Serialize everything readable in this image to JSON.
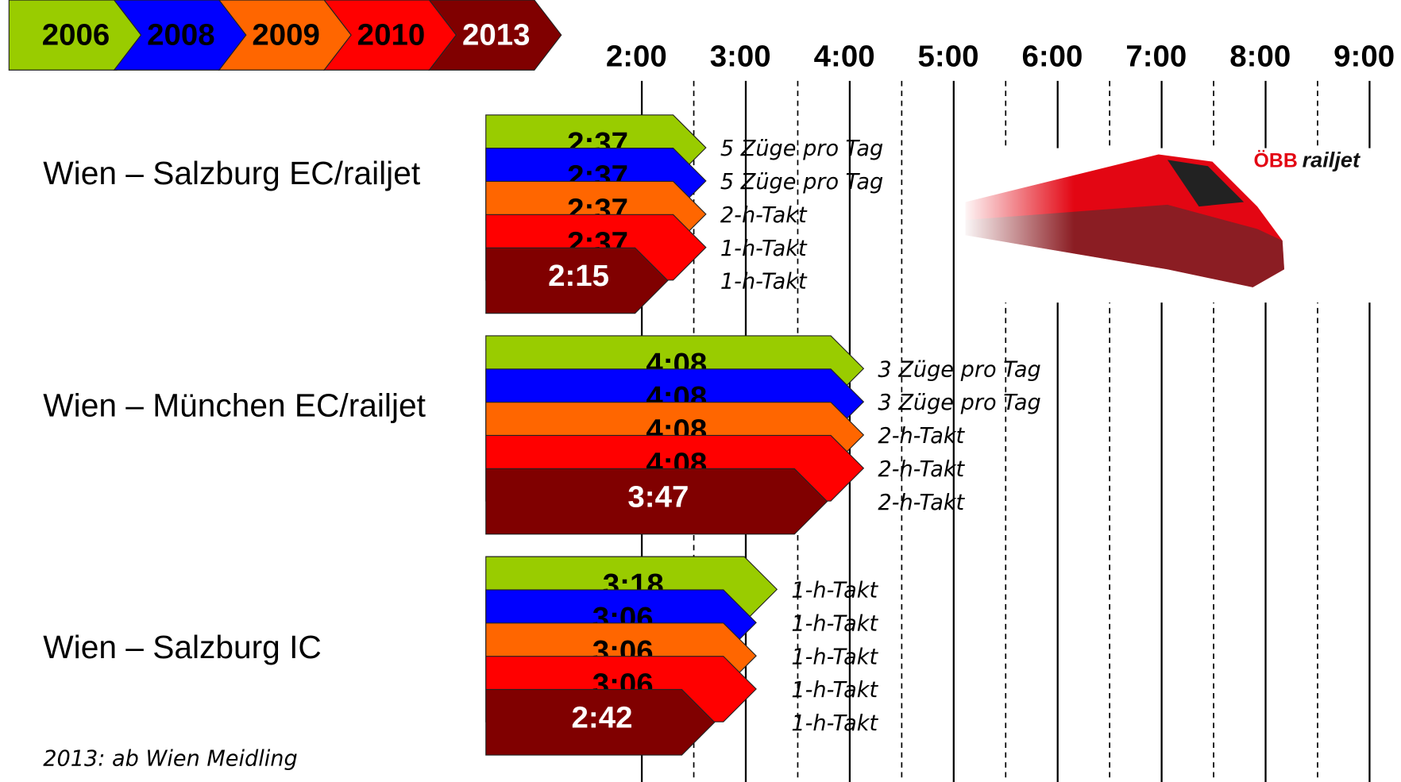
{
  "chart_data": {
    "type": "arrow-bar",
    "categories": [
      "Wien – Salzburg EC/railjet",
      "Wien – München EC/railjet",
      "Wien – Salzburg IC"
    ],
    "series": [
      {
        "name": "2006",
        "color": "#99cc00",
        "values": [
          2.6167,
          4.1333,
          3.3
        ],
        "value_labels": [
          "2:37",
          "4:08",
          "3:18"
        ],
        "notes": [
          "5 Züge pro Tag",
          "3 Züge pro Tag",
          "1-h-Takt"
        ]
      },
      {
        "name": "2008",
        "color": "#0000ff",
        "values": [
          2.6167,
          4.1333,
          3.1
        ],
        "value_labels": [
          "2:37",
          "4:08",
          "3:06"
        ],
        "notes": [
          "5 Züge pro Tag",
          "3 Züge pro Tag",
          "1-h-Takt"
        ]
      },
      {
        "name": "2009",
        "color": "#ff6600",
        "values": [
          2.6167,
          4.1333,
          3.1
        ],
        "value_labels": [
          "2:37",
          "4:08",
          "3:06"
        ],
        "notes": [
          "2-h-Takt",
          "2-h-Takt",
          "1-h-Takt"
        ]
      },
      {
        "name": "2010",
        "color": "#ff0000",
        "values": [
          2.6167,
          4.1333,
          3.1
        ],
        "value_labels": [
          "2:37",
          "4:08",
          "3:06"
        ],
        "notes": [
          "1-h-Takt",
          "2-h-Takt",
          "1-h-Takt"
        ]
      },
      {
        "name": "2013",
        "color": "#800000",
        "values": [
          2.25,
          3.7833,
          2.7
        ],
        "value_labels": [
          "2:15",
          "3:47",
          "2:42"
        ],
        "notes": [
          "1-h-Takt",
          "2-h-Takt",
          "1-h-Takt"
        ]
      }
    ],
    "xlim": [
      0.5,
      9
    ],
    "xticks": [
      {
        "value": 2,
        "label": "2:00"
      },
      {
        "value": 3,
        "label": "3:00"
      },
      {
        "value": 4,
        "label": "4:00"
      },
      {
        "value": 5,
        "label": "5:00"
      },
      {
        "value": 6,
        "label": "6:00"
      },
      {
        "value": 7,
        "label": "7:00"
      },
      {
        "value": 8,
        "label": "8:00"
      },
      {
        "value": 9,
        "label": "9:00"
      }
    ],
    "minor_xticks": [
      2.5,
      3.5,
      4.5,
      5.5,
      6.5,
      7.5,
      8.5
    ],
    "footnote": "2013: ab Wien Meidling",
    "logo": {
      "brand": "ÖBB",
      "product": "railjet"
    }
  }
}
